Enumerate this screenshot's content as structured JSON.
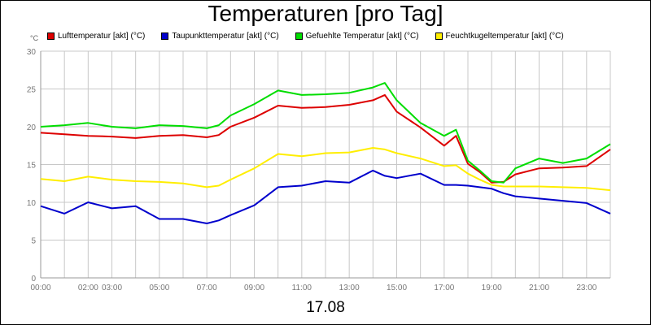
{
  "chart_data": {
    "type": "line",
    "title": "Temperaturen [pro Tag]",
    "ylabel": "°C",
    "xlabel": "17.08",
    "ylim": [
      0,
      30
    ],
    "y_ticks": [
      "0",
      "5",
      "10",
      "15",
      "20",
      "25",
      "30"
    ],
    "x_ticks": [
      {
        "h": 0,
        "label": "00:00"
      },
      {
        "h": 2,
        "label": "02:00"
      },
      {
        "h": 3,
        "label": "03:00"
      },
      {
        "h": 5,
        "label": "05:00"
      },
      {
        "h": 7,
        "label": "07:00"
      },
      {
        "h": 9,
        "label": "09:00"
      },
      {
        "h": 11,
        "label": "11:00"
      },
      {
        "h": 13,
        "label": "13:00"
      },
      {
        "h": 15,
        "label": "15:00"
      },
      {
        "h": 17,
        "label": "17:00"
      },
      {
        "h": 19,
        "label": "19:00"
      },
      {
        "h": 21,
        "label": "21:00"
      },
      {
        "h": 23,
        "label": "23:00"
      }
    ],
    "grid": true,
    "legend_position": "top",
    "x": [
      "00:00",
      "01:00",
      "02:00",
      "03:00",
      "04:00",
      "05:00",
      "06:00",
      "07:00",
      "07:30",
      "08:00",
      "09:00",
      "10:00",
      "11:00",
      "12:00",
      "13:00",
      "14:00",
      "14:30",
      "15:00",
      "16:00",
      "17:00",
      "17:30",
      "18:00",
      "18:30",
      "19:00",
      "19:30",
      "20:00",
      "21:00",
      "22:00",
      "23:00",
      "24:00"
    ],
    "series": [
      {
        "name": "Lufttemperatur [akt] (°C)",
        "color": "#dd0000",
        "values": [
          19.2,
          19.0,
          18.8,
          18.7,
          18.5,
          18.8,
          18.9,
          18.6,
          18.9,
          20.0,
          21.2,
          22.8,
          22.5,
          22.6,
          22.9,
          23.5,
          24.2,
          22.0,
          19.9,
          17.5,
          18.8,
          15.1,
          14.0,
          12.6,
          12.7,
          13.7,
          14.5,
          14.6,
          14.8,
          17.0
        ]
      },
      {
        "name": "Taupunkttemperatur [akt] (°C)",
        "color": "#0000cc",
        "values": [
          9.5,
          8.5,
          10.0,
          9.2,
          9.5,
          7.8,
          7.8,
          7.2,
          7.6,
          8.3,
          9.6,
          12.0,
          12.2,
          12.8,
          12.6,
          14.2,
          13.5,
          13.2,
          13.8,
          12.3,
          12.3,
          12.2,
          12.0,
          11.8,
          11.2,
          10.8,
          10.5,
          10.2,
          9.9,
          8.5
        ]
      },
      {
        "name": "Gefuehlte Temperatur [akt] (°C)",
        "color": "#00dd00",
        "values": [
          20.0,
          20.2,
          20.5,
          20.0,
          19.8,
          20.2,
          20.1,
          19.8,
          20.2,
          21.5,
          23.0,
          24.8,
          24.2,
          24.3,
          24.5,
          25.2,
          25.8,
          23.5,
          20.5,
          18.8,
          19.6,
          15.5,
          14.2,
          12.8,
          12.6,
          14.5,
          15.8,
          15.2,
          15.8,
          17.7
        ]
      },
      {
        "name": "Feuchtkugeltemperatur [akt] (°C)",
        "color": "#ffee00",
        "values": [
          13.1,
          12.8,
          13.4,
          13.0,
          12.8,
          12.7,
          12.5,
          12.0,
          12.2,
          13.0,
          14.5,
          16.4,
          16.1,
          16.5,
          16.6,
          17.2,
          17.0,
          16.5,
          15.8,
          14.8,
          14.9,
          13.8,
          13.0,
          12.3,
          12.1,
          12.1,
          12.1,
          12.0,
          11.9,
          11.6
        ]
      }
    ]
  }
}
